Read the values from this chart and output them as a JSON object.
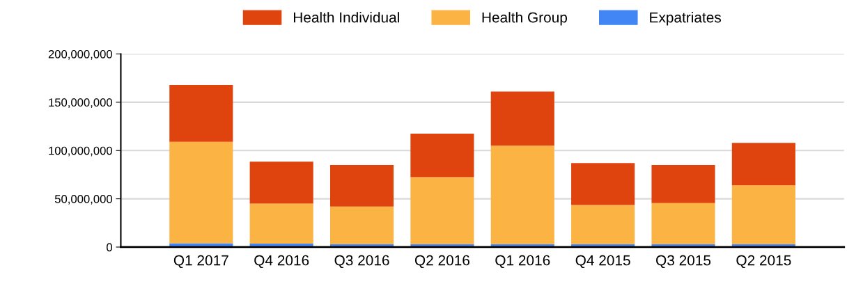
{
  "chart_data": {
    "type": "bar",
    "stacked": true,
    "categories": [
      "Q1 2017",
      "Q4 2016",
      "Q3 2016",
      "Q2 2016",
      "Q1 2016",
      "Q4 2015",
      "Q3 2015",
      "Q2 2015"
    ],
    "series": [
      {
        "name": "Expatriates",
        "color": "#4285f4",
        "values": [
          4000000,
          3500000,
          3000000,
          3000000,
          3000000,
          3000000,
          3000000,
          3000000
        ]
      },
      {
        "name": "Health Group",
        "color": "#fbb344",
        "values": [
          105000000,
          41500000,
          39000000,
          69500000,
          102000000,
          40500000,
          42500000,
          61000000
        ]
      },
      {
        "name": "Health Individual",
        "color": "#e0440e",
        "values": [
          59000000,
          43500000,
          43000000,
          45000000,
          56000000,
          43500000,
          39500000,
          44000000
        ]
      }
    ],
    "ylim": [
      0,
      200000000
    ],
    "yticks": [
      {
        "value": 0,
        "label": "0"
      },
      {
        "value": 50000000,
        "label": "50,000,000"
      },
      {
        "value": 100000000,
        "label": "100,000,000"
      },
      {
        "value": 150000000,
        "label": "150,000,000"
      },
      {
        "value": 200000000,
        "label": "200,000,000"
      }
    ],
    "grid": "y",
    "legend": "top"
  }
}
